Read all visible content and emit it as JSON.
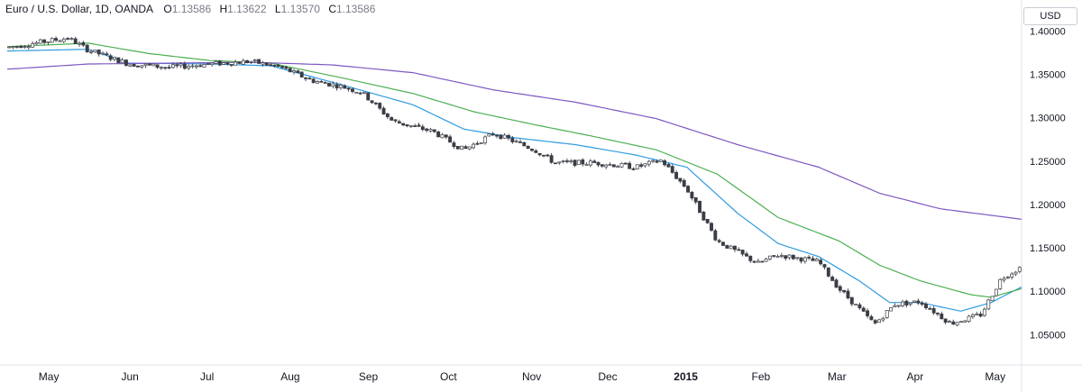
{
  "header": {
    "symbol": "Euro / U.S. Dollar, 1D, OANDA",
    "o_label": "O",
    "o_value": "1.13586",
    "h_label": "H",
    "h_value": "1.13622",
    "l_label": "L",
    "l_value": "1.13570",
    "c_label": "C",
    "c_value": "1.13586",
    "currency": "USD"
  },
  "chart_data": {
    "type": "candlestick",
    "title": "Euro / U.S. Dollar, 1D, OANDA",
    "ylim": [
      1.015,
      1.415
    ],
    "y_ticks": [
      "1.40000",
      "1.35000",
      "1.30000",
      "1.25000",
      "1.20000",
      "1.15000",
      "1.10000",
      "1.05000"
    ],
    "x_ticks": [
      "May",
      "Jun",
      "Jul",
      "Aug",
      "Sep",
      "Oct",
      "Nov",
      "Dec",
      "2015",
      "Feb",
      "Mar",
      "Apr",
      "May"
    ],
    "x_ticks_bold": [
      "2015"
    ],
    "price_path": [
      [
        0,
        1.381
      ],
      [
        0.06,
        1.392
      ],
      [
        0.08,
        1.378
      ],
      [
        0.12,
        1.362
      ],
      [
        0.16,
        1.358
      ],
      [
        0.2,
        1.362
      ],
      [
        0.24,
        1.365
      ],
      [
        0.27,
        1.358
      ],
      [
        0.3,
        1.343
      ],
      [
        0.33,
        1.336
      ],
      [
        0.35,
        1.329
      ],
      [
        0.38,
        1.296
      ],
      [
        0.42,
        1.284
      ],
      [
        0.45,
        1.263
      ],
      [
        0.48,
        1.282
      ],
      [
        0.52,
        1.263
      ],
      [
        0.54,
        1.248
      ],
      [
        0.58,
        1.248
      ],
      [
        0.62,
        1.243
      ],
      [
        0.645,
        1.251
      ],
      [
        0.67,
        1.218
      ],
      [
        0.7,
        1.158
      ],
      [
        0.74,
        1.132
      ],
      [
        0.76,
        1.142
      ],
      [
        0.8,
        1.134
      ],
      [
        0.82,
        1.103
      ],
      [
        0.855,
        1.062
      ],
      [
        0.875,
        1.085
      ],
      [
        0.9,
        1.088
      ],
      [
        0.93,
        1.063
      ],
      [
        0.96,
        1.073
      ],
      [
        0.98,
        1.115
      ],
      [
        1.0,
        1.128
      ]
    ],
    "series": [
      {
        "name": "",
        "color": "#2f9be0",
        "points": [
          [
            0,
            1.377
          ],
          [
            0.08,
            1.379
          ],
          [
            0.12,
            1.363
          ],
          [
            0.2,
            1.362
          ],
          [
            0.26,
            1.36
          ],
          [
            0.33,
            1.338
          ],
          [
            0.4,
            1.315
          ],
          [
            0.45,
            1.287
          ],
          [
            0.5,
            1.277
          ],
          [
            0.56,
            1.269
          ],
          [
            0.62,
            1.257
          ],
          [
            0.67,
            1.243
          ],
          [
            0.72,
            1.19
          ],
          [
            0.76,
            1.155
          ],
          [
            0.8,
            1.14
          ],
          [
            0.84,
            1.112
          ],
          [
            0.87,
            1.087
          ],
          [
            0.9,
            1.087
          ],
          [
            0.94,
            1.077
          ],
          [
            0.97,
            1.087
          ],
          [
            1.0,
            1.105
          ]
        ]
      },
      {
        "name": "",
        "color": "#4caf50",
        "points": [
          [
            0,
            1.382
          ],
          [
            0.08,
            1.386
          ],
          [
            0.14,
            1.374
          ],
          [
            0.2,
            1.366
          ],
          [
            0.26,
            1.363
          ],
          [
            0.33,
            1.346
          ],
          [
            0.4,
            1.328
          ],
          [
            0.46,
            1.307
          ],
          [
            0.52,
            1.292
          ],
          [
            0.58,
            1.278
          ],
          [
            0.64,
            1.263
          ],
          [
            0.7,
            1.235
          ],
          [
            0.76,
            1.185
          ],
          [
            0.82,
            1.158
          ],
          [
            0.86,
            1.13
          ],
          [
            0.9,
            1.112
          ],
          [
            0.95,
            1.096
          ],
          [
            0.97,
            1.093
          ],
          [
            1.0,
            1.103
          ]
        ]
      },
      {
        "name": "",
        "color": "#7e57c2",
        "points": [
          [
            0,
            1.356
          ],
          [
            0.08,
            1.362
          ],
          [
            0.16,
            1.363
          ],
          [
            0.24,
            1.364
          ],
          [
            0.32,
            1.361
          ],
          [
            0.4,
            1.352
          ],
          [
            0.48,
            1.332
          ],
          [
            0.56,
            1.318
          ],
          [
            0.64,
            1.299
          ],
          [
            0.72,
            1.269
          ],
          [
            0.8,
            1.243
          ],
          [
            0.86,
            1.213
          ],
          [
            0.92,
            1.195
          ],
          [
            1.0,
            1.183
          ]
        ]
      }
    ],
    "grid": false,
    "legend": "none"
  }
}
